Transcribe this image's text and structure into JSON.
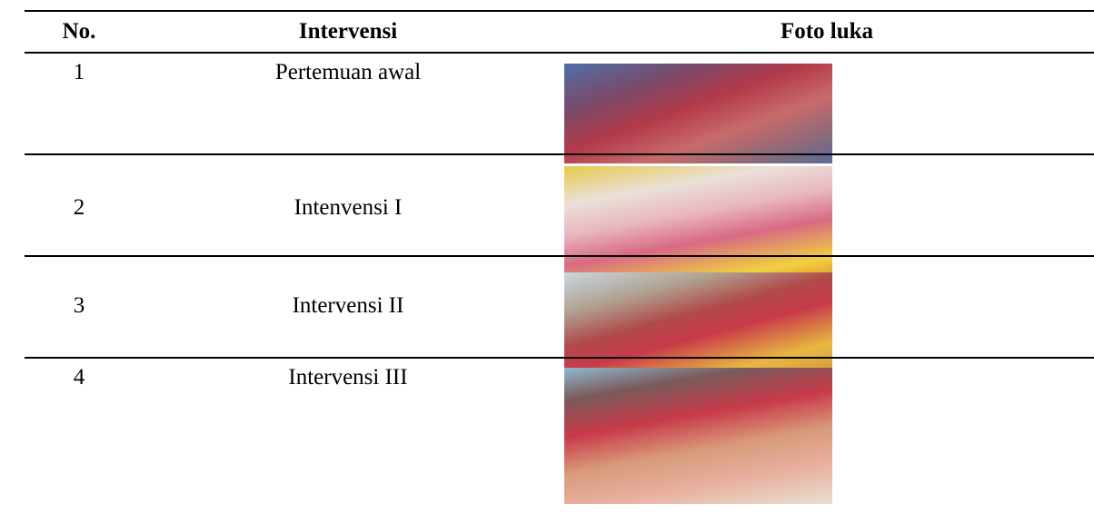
{
  "table": {
    "header": [
      "No.",
      "Intervensi",
      "Foto luka"
    ],
    "rows": [
      [
        "1",
        "Pertemuan awal"
      ],
      [
        "2",
        "Intenvensi I"
      ],
      [
        "3",
        "Intervensi II"
      ],
      [
        "4",
        "Intervensi III"
      ]
    ]
  }
}
